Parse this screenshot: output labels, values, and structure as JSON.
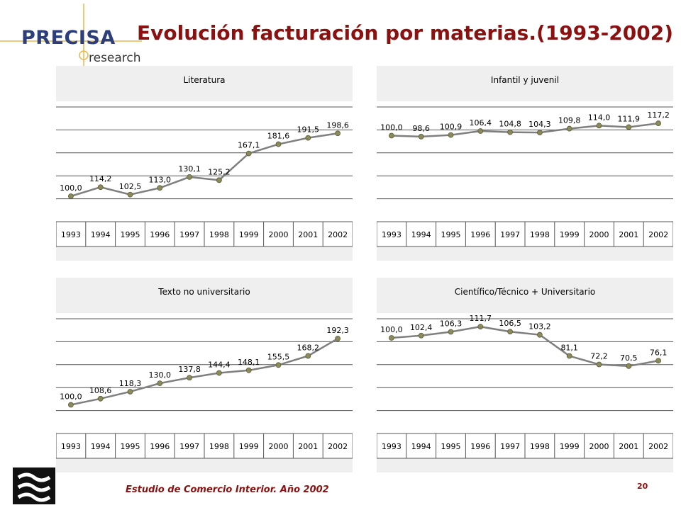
{
  "header": {
    "logo_text": "PRECISA",
    "logo_sub": "research",
    "title": "Evolución facturación por materias.(1993-2002)"
  },
  "footer": {
    "source": "Estudio de Comercio Interior. Año 2002",
    "page_number": "20"
  },
  "colors": {
    "title": "#8b1010",
    "line": "#7f7f7f",
    "marker": "#8a8a5a",
    "panel_bg": "#efefef"
  },
  "chart_data": [
    {
      "type": "line",
      "title": "Literatura",
      "categories": [
        "1993",
        "1994",
        "1995",
        "1996",
        "1997",
        "1998",
        "1999",
        "2000",
        "2001",
        "2002"
      ],
      "values": [
        100.0,
        114.2,
        102.5,
        113.0,
        130.1,
        125.2,
        167.1,
        181.6,
        191.5,
        198.6
      ],
      "labels": [
        "100,0",
        "114,2",
        "102,5",
        "113,0",
        "130,1",
        "125,2",
        "167,1",
        "181,6",
        "191,5",
        "198,6"
      ],
      "ylim": [
        60,
        240
      ],
      "grid": true
    },
    {
      "type": "line",
      "title": "Infantil y juvenil",
      "categories": [
        "1993",
        "1994",
        "1995",
        "1996",
        "1997",
        "1998",
        "1999",
        "2000",
        "2001",
        "2002"
      ],
      "values": [
        100.0,
        98.6,
        100.9,
        106.4,
        104.8,
        104.3,
        109.8,
        114.0,
        111.9,
        117.2
      ],
      "labels": [
        "100,0",
        "98,6",
        "100,9",
        "106,4",
        "104,8",
        "104,3",
        "109,8",
        "114,0",
        "111,9",
        "117,2"
      ],
      "ylim": [
        -20,
        140
      ],
      "grid": true
    },
    {
      "type": "line",
      "title": "Texto no universitario",
      "categories": [
        "1993",
        "1994",
        "1995",
        "1996",
        "1997",
        "1998",
        "1999",
        "2000",
        "2001",
        "2002"
      ],
      "values": [
        100.0,
        108.6,
        118.3,
        130.0,
        137.8,
        144.4,
        148.1,
        155.5,
        168.2,
        192.3
      ],
      "labels": [
        "100,0",
        "108,6",
        "118,3",
        "130,0",
        "137,8",
        "144,4",
        "148,1",
        "155,5",
        "168,2",
        "192,3"
      ],
      "ylim": [
        60,
        220
      ],
      "grid": true
    },
    {
      "type": "line",
      "title": "Científico/Técnico + Universitario",
      "categories": [
        "1993",
        "1994",
        "1995",
        "1996",
        "1997",
        "1998",
        "1999",
        "2000",
        "2001",
        "2002"
      ],
      "values": [
        100.0,
        102.4,
        106.3,
        111.7,
        106.5,
        103.2,
        81.1,
        72.2,
        70.5,
        76.1
      ],
      "labels": [
        "100,0",
        "102,4",
        "106,3",
        "111,7",
        "106,5",
        "103,2",
        "81,1",
        "72,2",
        "70,5",
        "76,1"
      ],
      "ylim": [
        0,
        120
      ],
      "grid": true
    }
  ]
}
